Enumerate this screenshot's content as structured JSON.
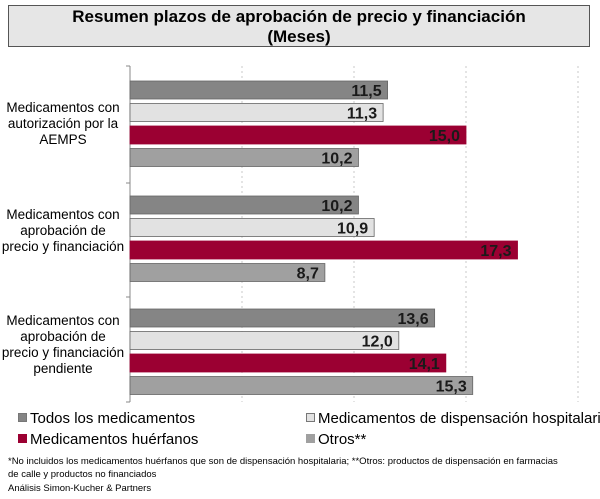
{
  "chart_data": {
    "type": "bar",
    "orientation": "horizontal",
    "title": [
      "Resumen plazos de aprobación de precio y financiación",
      "(Meses)"
    ],
    "categories": [
      "Medicamentos con autorización por la AEMPS",
      "Medicamentos con aprobación de precio y financiación",
      "Medicamentos con aprobación de precio y financiación pendiente"
    ],
    "series": [
      {
        "name": "Todos los medicamentos",
        "color": "#858585",
        "values": [
          11.5,
          10.2,
          13.6
        ],
        "labels": [
          "11,5",
          "10,2",
          "13,6"
        ]
      },
      {
        "name": "Medicamentos de dispensación hospitalaria*",
        "color": "#e2e2e2",
        "values": [
          11.3,
          10.9,
          12.0
        ],
        "labels": [
          "11,3",
          "10,9",
          "12,0"
        ]
      },
      {
        "name": "Medicamentos huérfanos",
        "color": "#9b0032",
        "values": [
          15.0,
          17.3,
          14.1
        ],
        "labels": [
          "15,0",
          "17,3",
          "14,1"
        ]
      },
      {
        "name": "Otros**",
        "color": "#a0a0a0",
        "values": [
          10.2,
          8.7,
          15.3
        ],
        "labels": [
          "10,2",
          "8,7",
          "15,3"
        ]
      }
    ],
    "xlim": [
      0,
      20
    ],
    "grid": true,
    "legend_position": "bottom"
  },
  "footnote": "*No incluidos los medicamentos  huérfanos que son de dispensación hospitalaria; **Otros: productos de dispensación en farmacias de calle y productos no financiados",
  "source": "Análisis Simon-Kucher & Partners"
}
